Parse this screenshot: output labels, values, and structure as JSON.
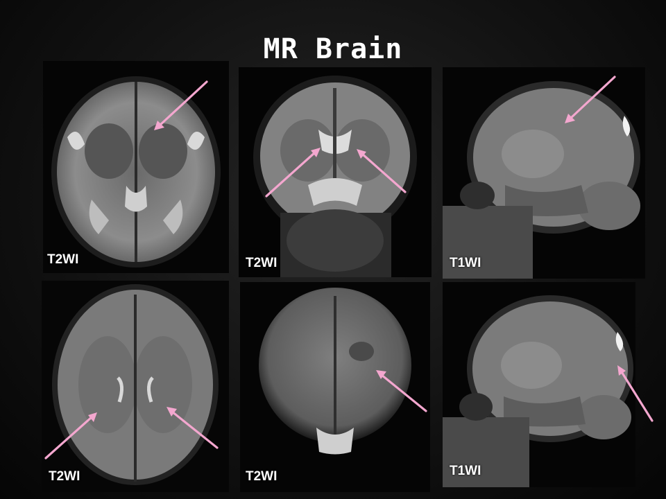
{
  "slide": {
    "title": "MR Brain"
  },
  "panels": [
    {
      "id": "top-left",
      "label": "T2WI",
      "view": "axial"
    },
    {
      "id": "top-middle",
      "label": "T2WI",
      "view": "coronal"
    },
    {
      "id": "top-right",
      "label": "T1WI",
      "view": "sagittal"
    },
    {
      "id": "bottom-left",
      "label": "T2WI",
      "view": "axial"
    },
    {
      "id": "bottom-middle",
      "label": "T2WI",
      "view": "axial"
    },
    {
      "id": "bottom-right",
      "label": "T1WI",
      "view": "sagittal"
    }
  ],
  "colors": {
    "background": "#111111",
    "title": "#ffffff",
    "arrow": "#f4a7cf",
    "label": "#ffffff"
  },
  "icons": [
    "arrow-icon"
  ]
}
